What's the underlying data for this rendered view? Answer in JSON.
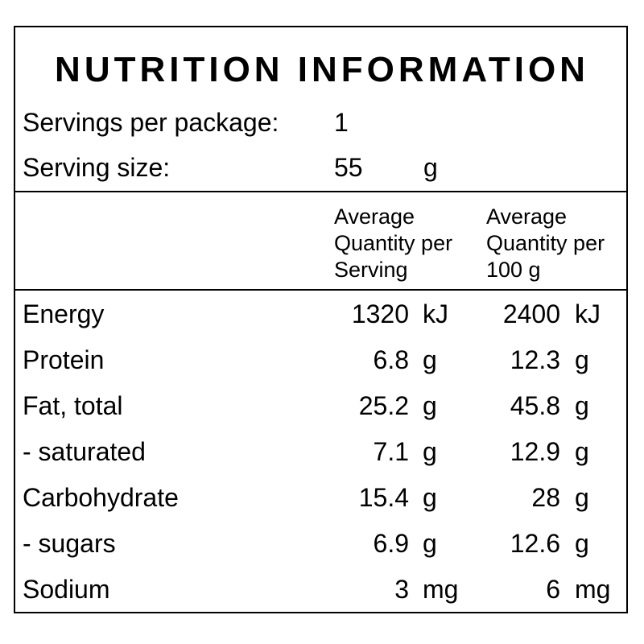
{
  "label": {
    "title": "NUTRITION INFORMATION",
    "servings_per_package_label": "Servings per package:",
    "servings_per_package_value": "1",
    "serving_size_label": "Serving size:",
    "serving_size_value": "55",
    "serving_size_unit": "g",
    "column_headers": {
      "per_serving": [
        "Average",
        "Quantity per",
        "Serving"
      ],
      "per_100g": [
        "Average",
        "Quantity per",
        "100 g"
      ]
    },
    "rows": [
      {
        "name": "Energy",
        "per_serving": "1320",
        "per_serving_unit": "kJ",
        "per_100g": "2400",
        "per_100g_unit": "kJ"
      },
      {
        "name": "Protein",
        "per_serving": "6.8",
        "per_serving_unit": "g",
        "per_100g": "12.3",
        "per_100g_unit": "g"
      },
      {
        "name": "Fat, total",
        "per_serving": "25.2",
        "per_serving_unit": "g",
        "per_100g": "45.8",
        "per_100g_unit": "g"
      },
      {
        "name": "- saturated",
        "per_serving": "7.1",
        "per_serving_unit": "g",
        "per_100g": "12.9",
        "per_100g_unit": "g"
      },
      {
        "name": "Carbohydrate",
        "per_serving": "15.4",
        "per_serving_unit": "g",
        "per_100g": "28",
        "per_100g_unit": "g"
      },
      {
        "name": "- sugars",
        "per_serving": "6.9",
        "per_serving_unit": "g",
        "per_100g": "12.6",
        "per_100g_unit": "g"
      },
      {
        "name": "Sodium",
        "per_serving": "3",
        "per_serving_unit": "mg",
        "per_100g": "6",
        "per_100g_unit": "mg"
      }
    ]
  }
}
